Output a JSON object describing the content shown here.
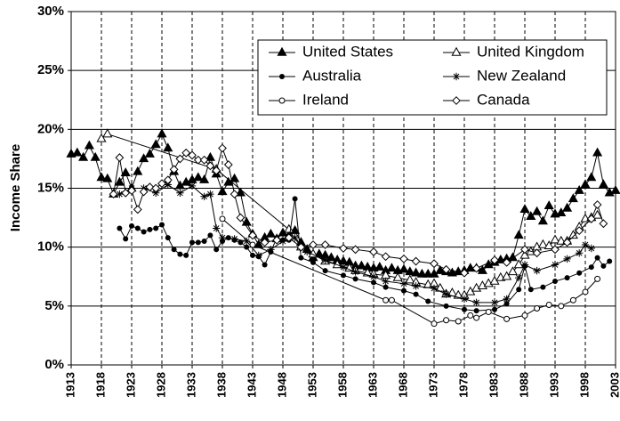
{
  "chart_data": {
    "type": "line",
    "y_label": "Income Share",
    "xlim": [
      1913,
      2003
    ],
    "xticks": [
      1913,
      1918,
      1923,
      1928,
      1933,
      1938,
      1943,
      1948,
      1953,
      1958,
      1963,
      1968,
      1973,
      1978,
      1983,
      1988,
      1993,
      1998,
      2003
    ],
    "ylim": [
      0,
      30
    ],
    "yticks": [
      {
        "value": 0,
        "label": "0%"
      },
      {
        "value": 5,
        "label": "5%"
      },
      {
        "value": 10,
        "label": "10%"
      },
      {
        "value": 15,
        "label": "15%"
      },
      {
        "value": 20,
        "label": "20%"
      },
      {
        "value": 25,
        "label": "25%"
      },
      {
        "value": 30,
        "label": "30%"
      }
    ],
    "grid": true,
    "legend": "upper right",
    "series": [
      {
        "name": "United States",
        "color": "#000000",
        "marker": "triangle",
        "x": [
          1913,
          1914,
          1915,
          1916,
          1917,
          1918,
          1919,
          1920,
          1921,
          1922,
          1923,
          1924,
          1925,
          1926,
          1927,
          1928,
          1929,
          1930,
          1931,
          1932,
          1933,
          1934,
          1935,
          1936,
          1937,
          1938,
          1939,
          1940,
          1941,
          1942,
          1943,
          1944,
          1945,
          1946,
          1947,
          1948,
          1949,
          1950,
          1951,
          1952,
          1953,
          1954,
          1955,
          1956,
          1957,
          1958,
          1959,
          1960,
          1961,
          1962,
          1963,
          1964,
          1965,
          1966,
          1967,
          1968,
          1969,
          1970,
          1971,
          1972,
          1973,
          1974,
          1975,
          1976,
          1977,
          1978,
          1979,
          1980,
          1981,
          1982,
          1983,
          1984,
          1985,
          1986,
          1987,
          1988,
          1989,
          1990,
          1991,
          1992,
          1993,
          1994,
          1995,
          1996,
          1997,
          1998,
          1999,
          2000,
          2001,
          2002,
          2003
        ],
        "values": [
          17.9,
          18.0,
          17.6,
          18.6,
          17.6,
          15.9,
          15.8,
          14.5,
          15.5,
          16.3,
          15.0,
          16.4,
          17.5,
          17.9,
          18.7,
          19.6,
          18.4,
          16.4,
          15.2,
          15.5,
          15.7,
          15.9,
          15.7,
          17.6,
          16.2,
          14.7,
          15.5,
          15.8,
          14.6,
          12.1,
          11.1,
          10.2,
          10.8,
          11.1,
          10.7,
          11.2,
          11.0,
          11.4,
          10.4,
          9.8,
          9.1,
          9.4,
          9.3,
          9.1,
          8.9,
          8.8,
          8.7,
          8.4,
          8.4,
          8.3,
          8.2,
          8.3,
          8.0,
          8.2,
          8.0,
          8.1,
          7.9,
          7.8,
          7.7,
          7.7,
          7.7,
          8.0,
          7.9,
          7.8,
          7.9,
          8.0,
          8.2,
          8.2,
          8.0,
          8.5,
          8.7,
          8.9,
          9.0,
          9.1,
          11.0,
          13.2,
          12.6,
          13.0,
          12.2,
          13.5,
          12.8,
          12.9,
          13.3,
          14.1,
          14.8,
          15.3,
          15.9,
          18.0,
          15.3,
          14.6,
          14.8
        ]
      },
      {
        "name": "United Kingdom",
        "color": "#000000",
        "marker": "triangle-open",
        "x": [
          1918,
          1919,
          1937,
          1949,
          1951,
          1953,
          1955,
          1957,
          1959,
          1960,
          1962,
          1963,
          1965,
          1967,
          1969,
          1970,
          1972,
          1973,
          1974,
          1975,
          1976,
          1977,
          1978,
          1979,
          1980,
          1981,
          1982,
          1983,
          1984,
          1985,
          1986,
          1987,
          1988,
          1989,
          1990,
          1991,
          1992,
          1993,
          1994,
          1995,
          1996,
          1997,
          1998,
          1999,
          2000
        ],
        "values": [
          19.2,
          19.6,
          16.6,
          11.5,
          10.0,
          9.4,
          8.8,
          8.5,
          8.2,
          8.0,
          7.8,
          7.7,
          7.6,
          7.4,
          7.2,
          7.0,
          6.8,
          6.9,
          6.5,
          6.0,
          6.1,
          5.9,
          5.9,
          6.2,
          6.5,
          6.7,
          6.9,
          7.1,
          7.4,
          7.5,
          7.9,
          8.5,
          9.3,
          9.6,
          10.0,
          10.2,
          10.1,
          10.6,
          10.5,
          10.5,
          11.0,
          11.7,
          12.4,
          12.5,
          12.7
        ]
      },
      {
        "name": "Australia",
        "color": "#000000",
        "marker": "circle",
        "x": [
          1921,
          1922,
          1923,
          1924,
          1925,
          1926,
          1927,
          1928,
          1929,
          1930,
          1931,
          1932,
          1933,
          1934,
          1935,
          1936,
          1937,
          1938,
          1939,
          1940,
          1941,
          1942,
          1943,
          1944,
          1945,
          1946,
          1947,
          1948,
          1949,
          1950,
          1951,
          1953,
          1955,
          1958,
          1960,
          1963,
          1965,
          1968,
          1970,
          1972,
          1975,
          1978,
          1980,
          1983,
          1985,
          1987,
          1988,
          1989,
          1991,
          1993,
          1995,
          1997,
          1999,
          2000,
          2001,
          2002
        ],
        "values": [
          11.6,
          10.7,
          11.8,
          11.6,
          11.3,
          11.5,
          11.6,
          11.9,
          10.8,
          9.8,
          9.4,
          9.3,
          10.4,
          10.4,
          10.5,
          11.0,
          9.8,
          10.5,
          10.8,
          10.6,
          10.4,
          10.0,
          9.3,
          9.2,
          8.5,
          9.6,
          10.8,
          10.6,
          10.6,
          14.1,
          9.1,
          8.7,
          8.0,
          7.6,
          7.3,
          7.0,
          6.6,
          6.3,
          6.0,
          5.4,
          5.0,
          4.7,
          4.6,
          4.7,
          5.2,
          6.4,
          8.4,
          6.4,
          6.6,
          7.1,
          7.4,
          7.8,
          8.3,
          9.1,
          8.4,
          8.8
        ]
      },
      {
        "name": "New Zealand",
        "color": "#000000",
        "marker": "star",
        "x": [
          1921,
          1923,
          1925,
          1927,
          1929,
          1931,
          1933,
          1935,
          1936,
          1937,
          1938,
          1940,
          1942,
          1944,
          1946,
          1948,
          1950,
          1952,
          1955,
          1958,
          1960,
          1963,
          1965,
          1968,
          1970,
          1973,
          1975,
          1978,
          1980,
          1983,
          1985,
          1987,
          1988,
          1990,
          1993,
          1995,
          1997,
          1998,
          1999
        ],
        "values": [
          14.5,
          15.0,
          15.0,
          14.6,
          15.3,
          14.6,
          15.2,
          14.3,
          14.5,
          11.6,
          10.8,
          10.7,
          10.5,
          9.3,
          9.8,
          10.5,
          10.8,
          9.6,
          8.9,
          8.3,
          7.9,
          7.5,
          7.1,
          6.9,
          6.7,
          6.5,
          6.0,
          5.6,
          5.3,
          5.3,
          5.6,
          7.4,
          8.5,
          8.0,
          8.5,
          9.0,
          9.5,
          10.2,
          9.9
        ]
      },
      {
        "name": "Ireland",
        "color": "#000000",
        "marker": "circle-open",
        "x": [
          1938,
          1943,
          1965,
          1966,
          1973,
          1975,
          1977,
          1979,
          1980,
          1982,
          1985,
          1988,
          1990,
          1992,
          1994,
          1996,
          1998,
          2000
        ],
        "values": [
          12.4,
          10.2,
          5.5,
          5.5,
          3.5,
          3.8,
          3.7,
          4.2,
          4.0,
          4.5,
          3.9,
          4.2,
          4.8,
          5.1,
          5.0,
          5.5,
          6.2,
          7.3
        ]
      },
      {
        "name": "Canada",
        "color": "#000000",
        "marker": "diamond-open",
        "x": [
          1920,
          1921,
          1922,
          1923,
          1924,
          1925,
          1926,
          1927,
          1928,
          1929,
          1930,
          1931,
          1932,
          1933,
          1934,
          1935,
          1936,
          1937,
          1938,
          1939,
          1940,
          1941,
          1943,
          1945,
          1947,
          1949,
          1951,
          1953,
          1955,
          1958,
          1960,
          1963,
          1965,
          1968,
          1970,
          1973,
          1975,
          1978,
          1980,
          1983,
          1985,
          1988,
          1990,
          1993,
          1995,
          1997,
          1999,
          2000,
          2001
        ],
        "values": [
          14.5,
          17.6,
          14.6,
          14.8,
          13.2,
          14.7,
          15.1,
          15.0,
          15.4,
          15.7,
          16.6,
          17.5,
          18.0,
          17.8,
          17.4,
          17.4,
          16.9,
          16.5,
          18.4,
          17.0,
          14.5,
          12.5,
          11.0,
          10.4,
          10.6,
          10.8,
          10.0,
          10.2,
          10.2,
          9.9,
          9.8,
          9.6,
          9.2,
          9.0,
          8.8,
          8.6,
          8.1,
          7.8,
          8.2,
          8.9,
          8.7,
          9.8,
          9.5,
          9.8,
          10.4,
          11.4,
          12.4,
          13.6,
          12.0
        ]
      }
    ]
  }
}
